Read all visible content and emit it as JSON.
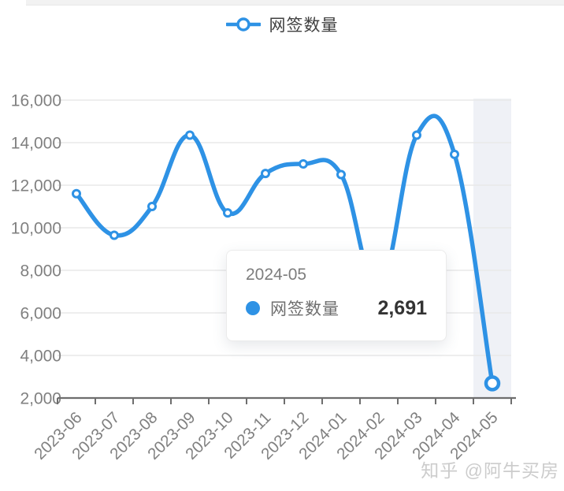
{
  "legend": {
    "label": "网签数量"
  },
  "tooltip": {
    "title": "2024-05",
    "series_label": "网签数量",
    "value": "2,691"
  },
  "watermark": {
    "text": "知乎 @阿牛买房"
  },
  "colors": {
    "line": "#2e92e5",
    "marker_fill": "#ffffff",
    "tooltip_dot": "#2e92e5",
    "grid_line": "#e9e9e9",
    "axis_line": "#6e6e6e",
    "axis_label": "#808080",
    "highlight_band": "#eff1f6"
  },
  "chart_data": {
    "type": "line",
    "title": "",
    "smooth": true,
    "grid": true,
    "legend_position": "top",
    "categories": [
      "2023-06",
      "2023-07",
      "2023-08",
      "2023-09",
      "2023-10",
      "2023-11",
      "2023-12",
      "2024-01",
      "2024-02",
      "2024-03",
      "2024-04",
      "2024-05"
    ],
    "series": [
      {
        "name": "网签数量",
        "values": [
          11600,
          9650,
          11000,
          14350,
          10700,
          12550,
          13000,
          12500,
          7200,
          14350,
          13450,
          2691
        ]
      }
    ],
    "ylim": [
      2000,
      16000
    ],
    "ytick_step": 2000,
    "ytick_labels": [
      "2,000",
      "4,000",
      "6,000",
      "8,000",
      "10,000",
      "12,000",
      "14,000",
      "16,000"
    ],
    "highlighted_category": "2024-05",
    "highlighted_index": 11,
    "hover_value_label": "2,691"
  }
}
